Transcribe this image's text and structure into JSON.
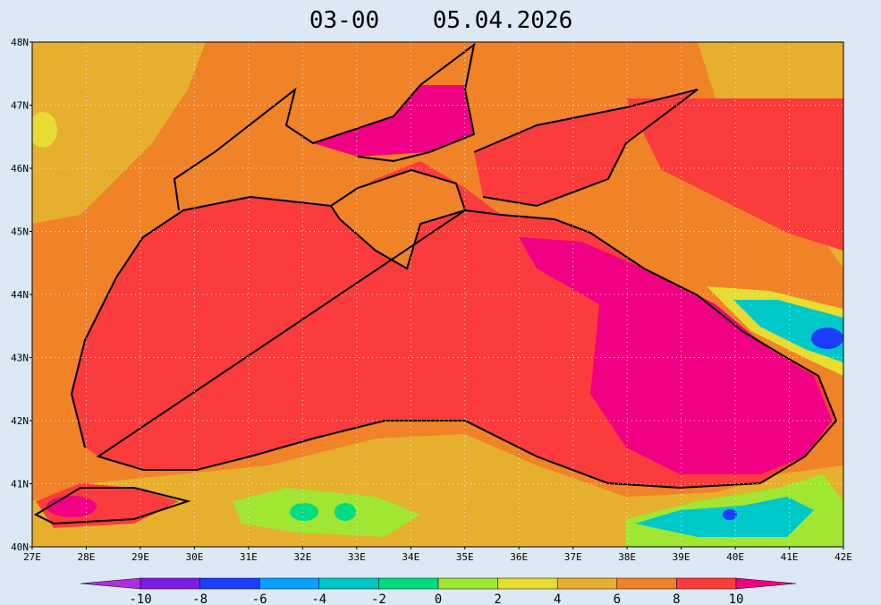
{
  "title": {
    "time": "03-00",
    "date": "05.04.2026"
  },
  "map": {
    "lat_labels": [
      "40N",
      "41N",
      "42N",
      "43N",
      "44N",
      "45N",
      "46N",
      "47N",
      "48N"
    ],
    "lon_labels": [
      "27E",
      "28E",
      "29E",
      "30E",
      "31E",
      "32E",
      "33E",
      "34E",
      "35E",
      "36E",
      "37E",
      "38E",
      "39E",
      "40E",
      "41E",
      "42E"
    ]
  },
  "colorbar": {
    "labels": [
      "-10",
      "-8",
      "-6",
      "-4",
      "-2",
      "0",
      "2",
      "4",
      "6",
      "8",
      "10"
    ],
    "colors": [
      "#b02ee0",
      "#7a1ee6",
      "#1e3cff",
      "#0aa0ff",
      "#00c8c8",
      "#00dc84",
      "#a0e632",
      "#e6dc32",
      "#e6af2d",
      "#f08228",
      "#fa3c3c",
      "#f00082"
    ]
  }
}
